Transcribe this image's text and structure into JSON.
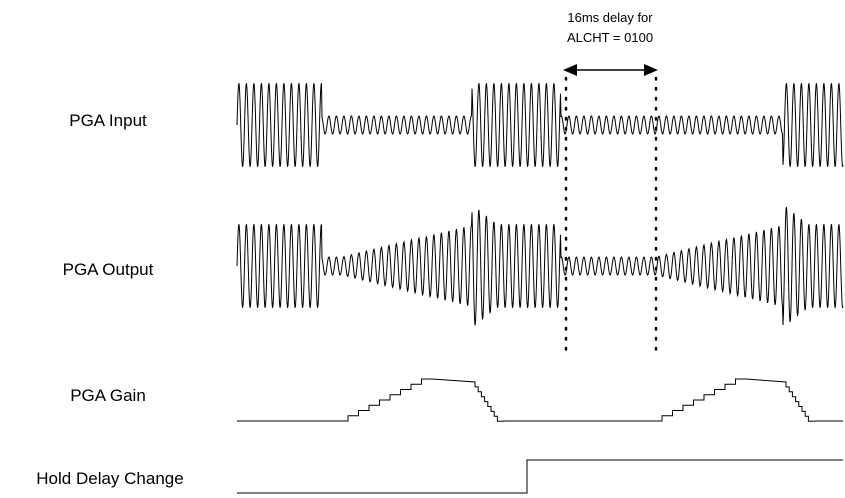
{
  "annotation": {
    "line1": "16ms delay for",
    "line2": "ALCHT = 0100"
  },
  "signals": [
    {
      "id": "pga-input",
      "label": "PGA Input"
    },
    {
      "id": "pga-output",
      "label": "PGA Output"
    },
    {
      "id": "pga-gain",
      "label": "PGA Gain"
    },
    {
      "id": "hold-delay-change",
      "label": "Hold Delay Change"
    }
  ],
  "colors": {
    "stroke": "#000000",
    "background": "#ffffff"
  }
}
